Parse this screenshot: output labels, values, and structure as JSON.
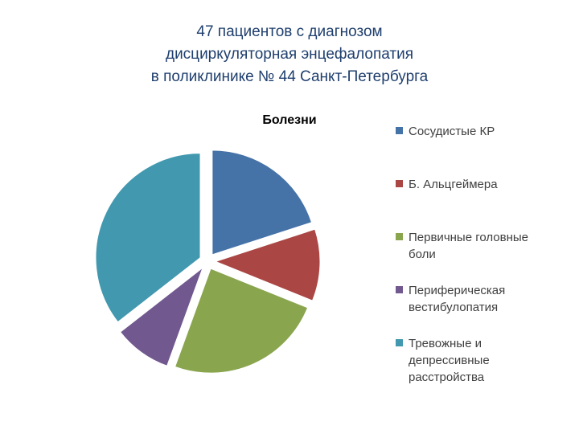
{
  "slide": {
    "title_lines": [
      "47 пациентов с диагнозом",
      "дисциркуляторная энцефалопатия",
      "в поликлинике № 44 Санкт-Петербурга"
    ]
  },
  "chart_data": {
    "type": "pie",
    "exploded": true,
    "title": "Болезни",
    "legend_position": "right",
    "categories": [
      "Сосудистые КР",
      "Б. Альцгеймера",
      "Первичные головные боли",
      "Периферическая вестибулопатия",
      "Тревожные и депрессивные расстройства"
    ],
    "legend_lines": [
      [
        "Сосудистые КР"
      ],
      [
        "Б. Альцгеймера"
      ],
      [
        "Первичные головные",
        "боли"
      ],
      [
        "Периферическая",
        "вестибулопатия"
      ],
      [
        "Тревожные и",
        "депрессивные",
        "расстройства"
      ]
    ],
    "values": [
      9,
      5,
      11,
      4,
      16
    ],
    "colors": [
      "#4572a7",
      "#aa4643",
      "#89a54e",
      "#71588f",
      "#4198af"
    ]
  }
}
